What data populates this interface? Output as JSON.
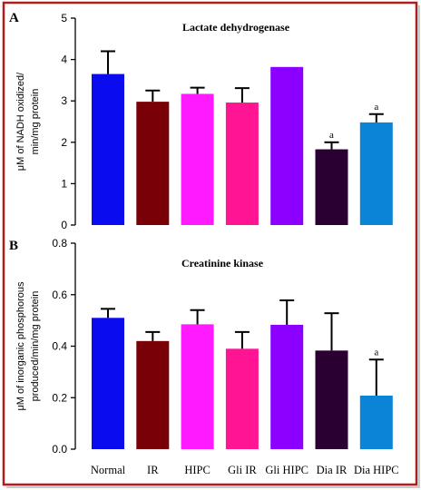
{
  "chart_data": [
    {
      "type": "bar",
      "panel_label": "A",
      "title": "Lactate dehydrogenase",
      "ylabel_lines": [
        "μM of NADH oxidized/",
        "min/mg protein"
      ],
      "ylim": [
        0,
        5
      ],
      "yticks": [
        0,
        1,
        2,
        3,
        4,
        5
      ],
      "grid": false,
      "categories": [
        "Normal",
        "IR",
        "HIPC",
        "Gli IR",
        "Gli HIPC",
        "Dia IR",
        "Dia HIPC"
      ],
      "show_category_labels": false,
      "values": [
        3.65,
        2.98,
        3.17,
        2.96,
        3.82,
        1.83,
        2.48
      ],
      "errors": [
        0.55,
        0.27,
        0.15,
        0.35,
        0.0,
        0.17,
        0.2
      ],
      "significance": [
        "",
        "",
        "",
        "",
        "",
        "a",
        "a"
      ],
      "colors": [
        "#0b0bef",
        "#7a0008",
        "#ff1aff",
        "#ff1493",
        "#8b00ff",
        "#2a0033",
        "#0984d6"
      ]
    },
    {
      "type": "bar",
      "panel_label": "B",
      "title": "Creatinine kinase",
      "ylabel_lines": [
        "μM of inorganic phosphorous",
        "produced/min/mg protein"
      ],
      "ylim": [
        0,
        0.8
      ],
      "yticks": [
        0,
        0.2,
        0.4,
        0.6,
        0.8
      ],
      "grid": false,
      "categories": [
        "Normal",
        "IR",
        "HIPC",
        "Gli IR",
        "Gli HIPC",
        "Dia IR",
        "Dia HIPC"
      ],
      "show_category_labels": true,
      "values": [
        0.51,
        0.42,
        0.485,
        0.39,
        0.483,
        0.383,
        0.208
      ],
      "errors": [
        0.035,
        0.035,
        0.055,
        0.065,
        0.095,
        0.145,
        0.14
      ],
      "significance": [
        "",
        "",
        "",
        "",
        "",
        "",
        "a"
      ],
      "colors": [
        "#0b0bef",
        "#7a0008",
        "#ff1aff",
        "#ff1493",
        "#8b00ff",
        "#2a0033",
        "#0984d6"
      ]
    }
  ]
}
